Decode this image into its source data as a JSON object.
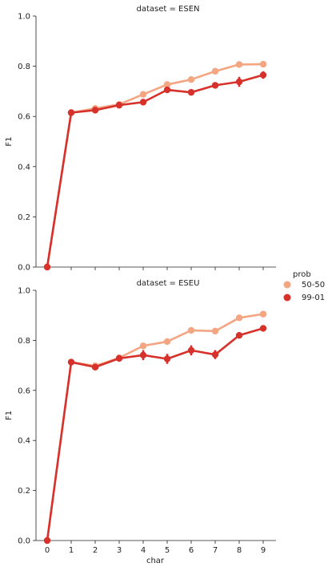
{
  "colors": {
    "s5050": "#f4a582",
    "s9901": "#d6312b",
    "axis": "#222222"
  },
  "legend": {
    "title": "prob",
    "items": [
      {
        "label": "50-50",
        "color": "#f4a582"
      },
      {
        "label": "99-01",
        "color": "#d6312b"
      }
    ]
  },
  "chart_data": [
    {
      "type": "line",
      "title": "dataset = ESEN",
      "xlabel": "",
      "ylabel": "F1",
      "x": [
        0,
        1,
        2,
        3,
        4,
        5,
        6,
        7,
        8,
        9
      ],
      "ylim": [
        0,
        1.0
      ],
      "yticks": [
        "0.0",
        "0.2",
        "0.4",
        "0.6",
        "0.8",
        "1.0"
      ],
      "xticks": [],
      "grid": false,
      "series": [
        {
          "name": "50-50",
          "color": "#f4a582",
          "values": [
            0.0,
            0.615,
            0.632,
            0.648,
            0.688,
            0.727,
            0.747,
            0.78,
            0.807,
            0.808
          ],
          "err": [
            0.0,
            0.004,
            0.005,
            0.006,
            0.007,
            0.006,
            0.005,
            0.008,
            0.012,
            0.012
          ]
        },
        {
          "name": "99-01",
          "color": "#d6312b",
          "values": [
            0.0,
            0.615,
            0.625,
            0.645,
            0.657,
            0.706,
            0.696,
            0.724,
            0.738,
            0.765
          ],
          "err": [
            0.0,
            0.004,
            0.006,
            0.006,
            0.007,
            0.01,
            0.01,
            0.012,
            0.02,
            0.015
          ]
        }
      ]
    },
    {
      "type": "line",
      "title": "dataset = ESEU",
      "xlabel": "char",
      "ylabel": "F1",
      "x": [
        0,
        1,
        2,
        3,
        4,
        5,
        6,
        7,
        8,
        9
      ],
      "ylim": [
        0,
        1.0
      ],
      "yticks": [
        "0.0",
        "0.2",
        "0.4",
        "0.6",
        "0.8",
        "1.0"
      ],
      "xticks": [
        "0",
        "1",
        "2",
        "3",
        "4",
        "5",
        "6",
        "7",
        "8",
        "9"
      ],
      "grid": false,
      "series": [
        {
          "name": "50-50",
          "color": "#f4a582",
          "values": [
            0.0,
            0.713,
            0.698,
            0.73,
            0.778,
            0.795,
            0.84,
            0.837,
            0.89,
            0.905
          ],
          "err": [
            0.0,
            0.004,
            0.006,
            0.008,
            0.008,
            0.008,
            0.007,
            0.008,
            0.008,
            0.008
          ]
        },
        {
          "name": "99-01",
          "color": "#d6312b",
          "values": [
            0.0,
            0.713,
            0.693,
            0.728,
            0.741,
            0.726,
            0.76,
            0.743,
            0.82,
            0.848
          ],
          "err": [
            0.0,
            0.004,
            0.008,
            0.008,
            0.02,
            0.02,
            0.02,
            0.018,
            0.01,
            0.008
          ]
        }
      ]
    }
  ]
}
